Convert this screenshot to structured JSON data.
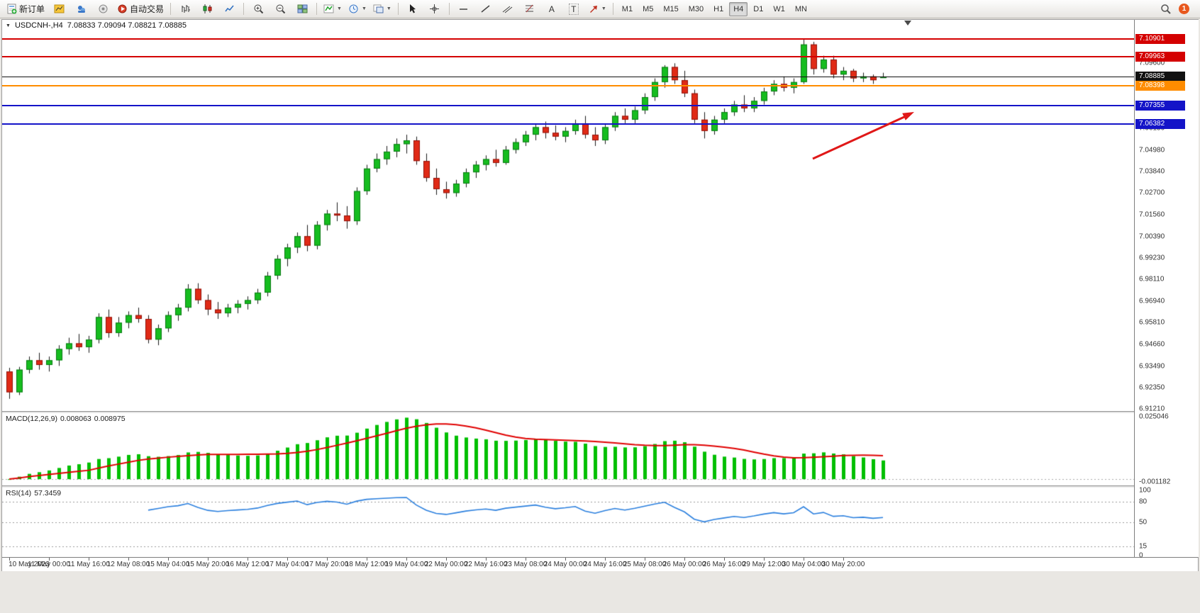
{
  "toolbar": {
    "new_order_label": "新订单",
    "autotrading_label": "自动交易",
    "timeframes": [
      "M1",
      "M5",
      "M15",
      "M30",
      "H1",
      "H4",
      "D1",
      "W1",
      "MN"
    ],
    "active_timeframe": "H4",
    "notification_count": "1"
  },
  "chart_header": {
    "symbol_period": "USDCNH-,H4",
    "ohlc_text": "7.08833 7.09094 7.08821 7.08885"
  },
  "macd_panel": {
    "label": "MACD(12,26,9)",
    "value_main": "0.008063",
    "value_signal": "0.008975"
  },
  "rsi_panel": {
    "label": "RSI(14)",
    "value": "57.3459"
  },
  "chart_data": {
    "type": "candlestick",
    "symbol": "USDCNH-",
    "period": "H4",
    "current_bar": {
      "open": 7.08833,
      "high": 7.09094,
      "low": 7.08821,
      "close": 7.08885
    },
    "main_axis": {
      "top": 7.1191,
      "bottom": 6.911
    },
    "y_axis_labels": [
      "7.10740",
      "7.09600",
      "7.08450",
      "7.07310",
      "7.06150",
      "7.04980",
      "7.03840",
      "7.02700",
      "7.01560",
      "7.00390",
      "6.99230",
      "6.98110",
      "6.96940",
      "6.95810",
      "6.94660",
      "6.93490",
      "6.92350",
      "6.91210"
    ],
    "x_label_step": 4,
    "x_labels": [
      "10 May 2023",
      "11 May 00:00",
      "11 May 16:00",
      "12 May 08:00",
      "15 May 04:00",
      "15 May 20:00",
      "16 May 12:00",
      "17 May 04:00",
      "17 May 20:00",
      "18 May 12:00",
      "19 May 04:00",
      "22 May 00:00",
      "22 May 16:00",
      "23 May 08:00",
      "24 May 00:00",
      "24 May 16:00",
      "25 May 08:00",
      "26 May 00:00",
      "26 May 16:00",
      "29 May 12:00",
      "30 May 04:00",
      "30 May 20:00"
    ],
    "candles": [
      [
        6.932,
        6.934,
        6.9175,
        6.921
      ],
      [
        6.921,
        6.9345,
        6.9195,
        6.933
      ],
      [
        6.933,
        6.94,
        6.931,
        6.938
      ],
      [
        6.938,
        6.942,
        6.933,
        6.9355
      ],
      [
        6.9355,
        6.94,
        6.932,
        6.938
      ],
      [
        6.938,
        6.946,
        6.935,
        6.944
      ],
      [
        6.944,
        6.95,
        6.941,
        6.947
      ],
      [
        6.947,
        6.952,
        6.943,
        6.945
      ],
      [
        6.945,
        6.951,
        6.942,
        6.949
      ],
      [
        6.949,
        6.963,
        6.947,
        6.961
      ],
      [
        6.961,
        6.965,
        6.95,
        6.9525
      ],
      [
        6.9525,
        6.961,
        6.9505,
        6.958
      ],
      [
        6.958,
        6.964,
        6.955,
        6.962
      ],
      [
        6.962,
        6.966,
        6.958,
        6.96
      ],
      [
        6.96,
        6.962,
        6.947,
        6.949
      ],
      [
        6.949,
        6.957,
        6.946,
        6.955
      ],
      [
        6.955,
        6.964,
        6.953,
        6.962
      ],
      [
        6.962,
        6.968,
        6.959,
        6.966
      ],
      [
        6.966,
        6.9785,
        6.964,
        6.976
      ],
      [
        6.976,
        6.979,
        6.968,
        6.97
      ],
      [
        6.97,
        6.973,
        6.962,
        6.965
      ],
      [
        6.965,
        6.969,
        6.96,
        6.963
      ],
      [
        6.963,
        6.968,
        6.961,
        6.966
      ],
      [
        6.966,
        6.97,
        6.963,
        6.968
      ],
      [
        6.968,
        6.972,
        6.965,
        6.97
      ],
      [
        6.97,
        6.976,
        6.968,
        6.974
      ],
      [
        6.974,
        6.985,
        6.972,
        6.983
      ],
      [
        6.983,
        6.994,
        6.981,
        6.992
      ],
      [
        6.992,
        7.0,
        6.988,
        6.998
      ],
      [
        6.998,
        7.006,
        6.995,
        7.004
      ],
      [
        7.004,
        7.01,
        6.996,
        6.999
      ],
      [
        6.999,
        7.012,
        6.997,
        7.01
      ],
      [
        7.01,
        7.018,
        7.007,
        7.016
      ],
      [
        7.016,
        7.022,
        7.012,
        7.015
      ],
      [
        7.015,
        7.02,
        7.008,
        7.012
      ],
      [
        7.012,
        7.03,
        7.01,
        7.028
      ],
      [
        7.028,
        7.042,
        7.026,
        7.04
      ],
      [
        7.04,
        7.048,
        7.038,
        7.045
      ],
      [
        7.045,
        7.052,
        7.042,
        7.049
      ],
      [
        7.049,
        7.056,
        7.046,
        7.053
      ],
      [
        7.053,
        7.058,
        7.048,
        7.055
      ],
      [
        7.055,
        7.057,
        7.042,
        7.044
      ],
      [
        7.044,
        7.048,
        7.033,
        7.035
      ],
      [
        7.035,
        7.04,
        7.026,
        7.029
      ],
      [
        7.029,
        7.033,
        7.024,
        7.027
      ],
      [
        7.027,
        7.034,
        7.025,
        7.032
      ],
      [
        7.032,
        7.04,
        7.03,
        7.038
      ],
      [
        7.038,
        7.044,
        7.035,
        7.042
      ],
      [
        7.042,
        7.047,
        7.039,
        7.045
      ],
      [
        7.045,
        7.05,
        7.041,
        7.043
      ],
      [
        7.043,
        7.052,
        7.042,
        7.05
      ],
      [
        7.05,
        7.056,
        7.048,
        7.054
      ],
      [
        7.054,
        7.06,
        7.052,
        7.058
      ],
      [
        7.058,
        7.064,
        7.055,
        7.062
      ],
      [
        7.062,
        7.065,
        7.056,
        7.059
      ],
      [
        7.059,
        7.063,
        7.055,
        7.057
      ],
      [
        7.057,
        7.062,
        7.054,
        7.06
      ],
      [
        7.06,
        7.066,
        7.058,
        7.064
      ],
      [
        7.064,
        7.068,
        7.056,
        7.058
      ],
      [
        7.058,
        7.062,
        7.052,
        7.055
      ],
      [
        7.055,
        7.064,
        7.053,
        7.062
      ],
      [
        7.062,
        7.07,
        7.06,
        7.068
      ],
      [
        7.068,
        7.072,
        7.064,
        7.066
      ],
      [
        7.066,
        7.073,
        7.064,
        7.071
      ],
      [
        7.071,
        7.08,
        7.069,
        7.078
      ],
      [
        7.078,
        7.088,
        7.076,
        7.086
      ],
      [
        7.086,
        7.095,
        7.083,
        7.094
      ],
      [
        7.094,
        7.096,
        7.085,
        7.087
      ],
      [
        7.087,
        7.092,
        7.078,
        7.08
      ],
      [
        7.08,
        7.082,
        7.064,
        7.066
      ],
      [
        7.066,
        7.07,
        7.056,
        7.06
      ],
      [
        7.06,
        7.068,
        7.058,
        7.066
      ],
      [
        7.066,
        7.072,
        7.064,
        7.07
      ],
      [
        7.07,
        7.076,
        7.068,
        7.074
      ],
      [
        7.074,
        7.079,
        7.07,
        7.072
      ],
      [
        7.072,
        7.078,
        7.07,
        7.076
      ],
      [
        7.076,
        7.083,
        7.074,
        7.081
      ],
      [
        7.081,
        7.087,
        7.079,
        7.085
      ],
      [
        7.085,
        7.089,
        7.081,
        7.083
      ],
      [
        7.083,
        7.088,
        7.08,
        7.086
      ],
      [
        7.086,
        7.109,
        7.085,
        7.106
      ],
      [
        7.106,
        7.1074,
        7.09,
        7.093
      ],
      [
        7.093,
        7.1,
        7.091,
        7.098
      ],
      [
        7.098,
        7.1,
        7.088,
        7.09
      ],
      [
        7.09,
        7.094,
        7.087,
        7.092
      ],
      [
        7.092,
        7.093,
        7.086,
        7.088
      ],
      [
        7.088,
        7.091,
        7.086,
        7.089
      ],
      [
        7.089,
        7.09,
        7.085,
        7.087
      ],
      [
        7.08833,
        7.09094,
        7.08821,
        7.08885
      ]
    ],
    "levels": [
      {
        "price": 7.10901,
        "label": "7.10901",
        "color": "#d40000",
        "width": 2
      },
      {
        "price": 7.09963,
        "label": "7.09963",
        "color": "#d40000",
        "width": 2
      },
      {
        "price": 7.08885,
        "label": "7.08885",
        "color": "#111111",
        "width": 1,
        "current": true
      },
      {
        "price": 7.08398,
        "label": "7.08398",
        "color": "#ff8c00",
        "width": 2
      },
      {
        "price": 7.07355,
        "label": "7.07355",
        "color": "#1414c8",
        "width": 2
      },
      {
        "price": 7.06382,
        "label": "7.06382",
        "color": "#1414c8",
        "width": 2
      }
    ],
    "macd": {
      "fast": 12,
      "slow": 26,
      "signal": 9,
      "range": {
        "top": 0.0262,
        "bottom": -0.0025
      },
      "axis_labels": [
        "0.025046",
        "-0.001182"
      ]
    },
    "rsi": {
      "period": 14,
      "levels": [
        80,
        50,
        15
      ],
      "axis_labels": [
        "100",
        "80",
        "50",
        "15",
        "0"
      ]
    },
    "colors": {
      "up": "#16bd1f",
      "down": "#e02a16",
      "up_border": "#0a7a14",
      "down_border": "#8f120a",
      "wick": "#1a1a1a",
      "macd_hist": "#00bf00",
      "macd_signal": "#e00000",
      "rsi_line": "#2a7fde"
    },
    "annotation_arrow": {
      "color": "#e01818"
    }
  }
}
